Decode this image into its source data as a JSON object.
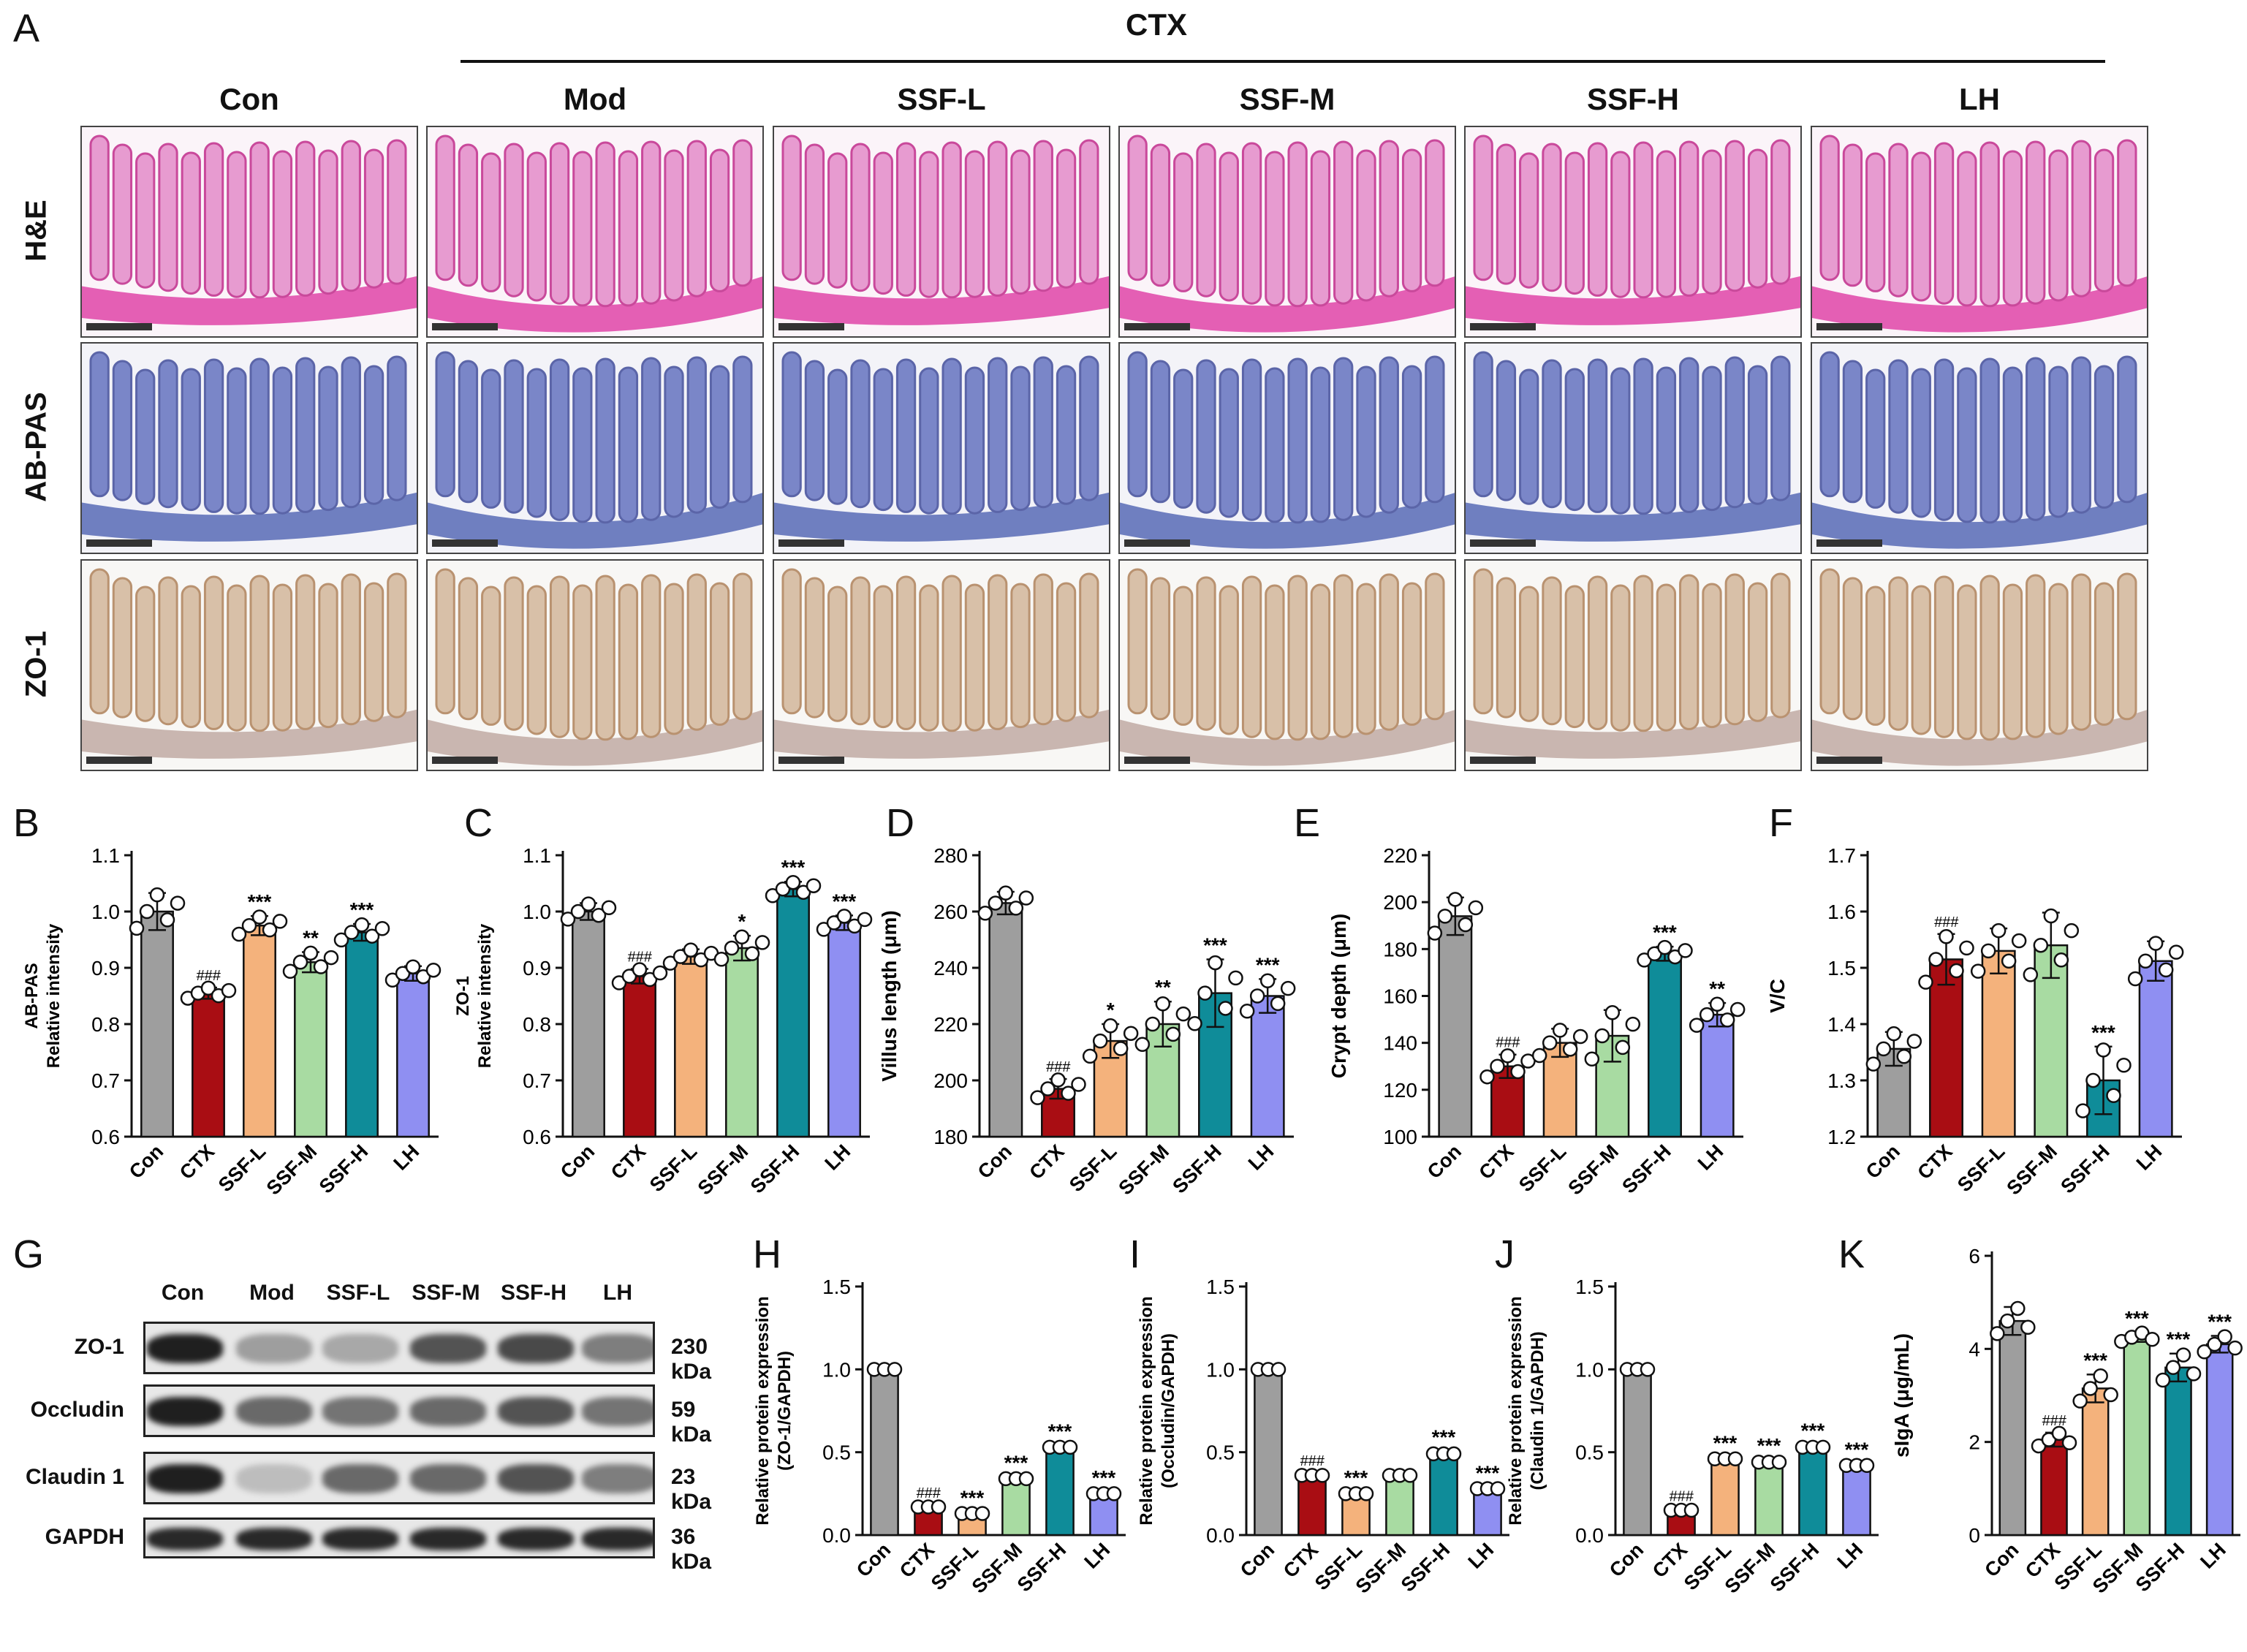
{
  "panel_a": {
    "letter": "A",
    "group_label": "CTX",
    "columns": [
      "Con",
      "Mod",
      "SSF-L",
      "SSF-M",
      "SSF-H",
      "LH"
    ],
    "rows": [
      "H&E",
      "AB-PAS",
      "ZO-1"
    ],
    "stain_colors": {
      "H&E": "#e79bd0",
      "AB-PAS": "#7a86c8",
      "ZO-1": "#cfc6d8"
    }
  },
  "panel_g": {
    "letter": "G",
    "lanes": [
      "Con",
      "Mod",
      "SSF-L",
      "SSF-M",
      "SSF-H",
      "LH"
    ],
    "proteins": [
      {
        "name": "ZO-1",
        "kda": "230 kDa",
        "intensity": [
          0.95,
          0.35,
          0.3,
          0.7,
          0.75,
          0.5
        ]
      },
      {
        "name": "Occludin",
        "kda": "59 kDa",
        "intensity": [
          0.95,
          0.6,
          0.55,
          0.6,
          0.7,
          0.55
        ]
      },
      {
        "name": "Claudin 1",
        "kda": "23 kDa",
        "intensity": [
          0.95,
          0.2,
          0.6,
          0.6,
          0.7,
          0.5
        ]
      },
      {
        "name": "GAPDH",
        "kda": "36 kDa",
        "intensity": [
          0.9,
          0.9,
          0.9,
          0.9,
          0.9,
          0.9
        ]
      }
    ]
  },
  "colors": {
    "Con": "#9e9e9e",
    "CTX": "#a90d13",
    "SSF-L": "#f4b27c",
    "SSF-M": "#a8dba2",
    "SSF-H": "#0f8c99",
    "LH": "#8f8ff2"
  },
  "chart_data": [
    {
      "id": "B",
      "type": "bar",
      "letter": "B",
      "ylabel": "AB-PAS\nRelative intensity",
      "categories": [
        "Con",
        "CTX",
        "SSF-L",
        "SSF-M",
        "SSF-H",
        "LH"
      ],
      "values": [
        1.0,
        0.855,
        0.975,
        0.91,
        0.963,
        0.89
      ],
      "errors": [
        0.033,
        0.01,
        0.017,
        0.018,
        0.015,
        0.013
      ],
      "ylim": [
        0.6,
        1.1
      ],
      "yticks": [
        "0.6",
        "0.7",
        "0.8",
        "0.9",
        "1.0",
        "1.1"
      ],
      "sig": [
        "",
        "###",
        "***",
        "**",
        "***",
        ""
      ]
    },
    {
      "id": "C",
      "type": "bar",
      "letter": "C",
      "ylabel": "ZO-1\nRelative intensity",
      "categories": [
        "Con",
        "CTX",
        "SSF-L",
        "SSF-M",
        "SSF-H",
        "LH"
      ],
      "values": [
        1.0,
        0.885,
        0.92,
        0.935,
        1.04,
        0.98
      ],
      "errors": [
        0.015,
        0.013,
        0.013,
        0.022,
        0.013,
        0.013
      ],
      "ylim": [
        0.6,
        1.1
      ],
      "yticks": [
        "0.6",
        "0.7",
        "0.8",
        "0.9",
        "1.0",
        "1.1"
      ],
      "sig": [
        "",
        "###",
        "",
        "*",
        "***",
        "***"
      ]
    },
    {
      "id": "D",
      "type": "bar",
      "letter": "D",
      "ylabel": "Villus length (μm)",
      "categories": [
        "Con",
        "CTX",
        "SSF-L",
        "SSF-M",
        "SSF-H",
        "LH"
      ],
      "values": [
        263,
        197,
        214,
        220,
        231,
        230
      ],
      "errors": [
        4,
        3.5,
        6,
        8,
        12,
        6
      ],
      "ylim": [
        180,
        280
      ],
      "yticks": [
        "180",
        "200",
        "220",
        "240",
        "260",
        "280"
      ],
      "sig": [
        "",
        "###",
        "*",
        "**",
        "***",
        "***"
      ]
    },
    {
      "id": "E",
      "type": "bar",
      "letter": "E",
      "ylabel": "Crypt depth (μm)",
      "categories": [
        "Con",
        "CTX",
        "SSF-L",
        "SSF-M",
        "SSF-H",
        "LH"
      ],
      "values": [
        194,
        130,
        140,
        143,
        178,
        152
      ],
      "errors": [
        8,
        5,
        6,
        11,
        3,
        5
      ],
      "ylim": [
        100,
        220
      ],
      "yticks": [
        "100",
        "120",
        "140",
        "160",
        "180",
        "200",
        "220"
      ],
      "sig": [
        "",
        "###",
        "",
        "",
        "***",
        "**"
      ]
    },
    {
      "id": "F",
      "type": "bar",
      "letter": "F",
      "ylabel": "V/C",
      "categories": [
        "Con",
        "CTX",
        "SSF-L",
        "SSF-M",
        "SSF-H",
        "LH"
      ],
      "values": [
        1.356,
        1.515,
        1.53,
        1.54,
        1.3,
        1.512
      ],
      "errors": [
        0.03,
        0.045,
        0.04,
        0.058,
        0.06,
        0.035
      ],
      "ylim": [
        1.2,
        1.7
      ],
      "yticks": [
        "1.2",
        "1.3",
        "1.4",
        "1.5",
        "1.6",
        "1.7"
      ],
      "sig": [
        "",
        "###",
        "",
        "",
        "***",
        ""
      ]
    },
    {
      "id": "H",
      "type": "bar",
      "letter": "H",
      "ylabel": "Relative protein expression\n(ZO-1/GAPDH)",
      "categories": [
        "Con",
        "CTX",
        "SSF-L",
        "SSF-M",
        "SSF-H",
        "LH"
      ],
      "values": [
        1.0,
        0.17,
        0.13,
        0.34,
        0.53,
        0.25
      ],
      "errors": [
        0.01,
        0.01,
        0.01,
        0.01,
        0.01,
        0.01
      ],
      "ylim": [
        0.0,
        1.5
      ],
      "yticks": [
        "0.0",
        "0.5",
        "1.0",
        "1.5"
      ],
      "sig": [
        "",
        "###",
        "***",
        "***",
        "***",
        "***"
      ]
    },
    {
      "id": "I",
      "type": "bar",
      "letter": "I",
      "ylabel": "Relative protein expression\n(Occludin/GAPDH)",
      "categories": [
        "Con",
        "CTX",
        "SSF-L",
        "SSF-M",
        "SSF-H",
        "LH"
      ],
      "values": [
        1.0,
        0.36,
        0.25,
        0.36,
        0.49,
        0.28
      ],
      "errors": [
        0.01,
        0.015,
        0.01,
        0.01,
        0.015,
        0.01
      ],
      "ylim": [
        0.0,
        1.5
      ],
      "yticks": [
        "0.0",
        "0.5",
        "1.0",
        "1.5"
      ],
      "sig": [
        "",
        "###",
        "***",
        "",
        "***",
        "***"
      ]
    },
    {
      "id": "J",
      "type": "bar",
      "letter": "J",
      "ylabel": "Relative protein expression\n(Claudin 1/GAPDH)",
      "categories": [
        "Con",
        "CTX",
        "SSF-L",
        "SSF-M",
        "SSF-H",
        "LH"
      ],
      "values": [
        1.0,
        0.15,
        0.46,
        0.44,
        0.53,
        0.42
      ],
      "errors": [
        0.01,
        0.01,
        0.01,
        0.015,
        0.015,
        0.01
      ],
      "ylim": [
        0.0,
        1.5
      ],
      "yticks": [
        "0.0",
        "0.5",
        "1.0",
        "1.5"
      ],
      "sig": [
        "",
        "###",
        "***",
        "***",
        "***",
        "***"
      ]
    },
    {
      "id": "K",
      "type": "bar",
      "letter": "K",
      "ylabel": "sIgA (μg/mL)",
      "categories": [
        "Con",
        "CTX",
        "SSF-L",
        "SSF-M",
        "SSF-H",
        "LH"
      ],
      "values": [
        4.6,
        2.05,
        3.15,
        4.25,
        3.6,
        4.1
      ],
      "errors": [
        0.3,
        0.15,
        0.3,
        0.1,
        0.3,
        0.18
      ],
      "ylim": [
        0,
        6
      ],
      "yticks": [
        "0",
        "2",
        "4",
        "6"
      ],
      "sig": [
        "",
        "###",
        "***",
        "***",
        "***",
        "***"
      ]
    }
  ]
}
